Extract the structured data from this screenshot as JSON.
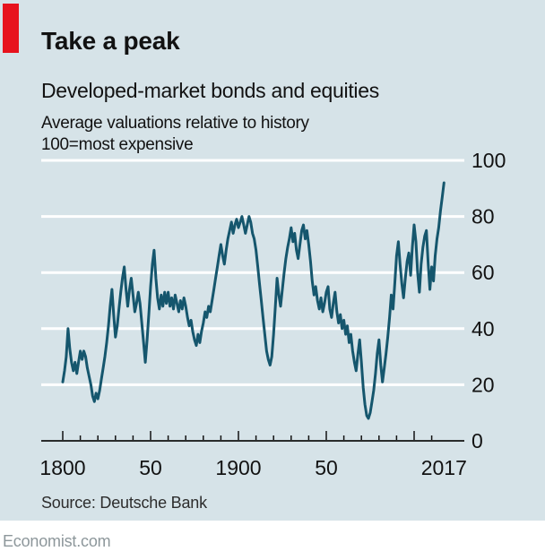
{
  "header": {
    "title": "Take a peak",
    "subtitle": "Developed-market bonds and equities",
    "note_line1": "Average valuations relative to history",
    "note_line2": "100=most expensive"
  },
  "source": "Source: Deutsche Bank",
  "footer": "Economist.com",
  "colors": {
    "background": "#d6e3e8",
    "accent_red": "#e7131d",
    "line": "#15566d",
    "grid": "#ffffff",
    "axis": "#121212",
    "text": "#121212",
    "source_text": "#2d2d2d",
    "footer_text": "#8d979b"
  },
  "chart_data": {
    "type": "line",
    "title": "Take a peak",
    "subtitle": "Developed-market bonds and equities",
    "notes": [
      "Average valuations relative to history",
      "100=most expensive"
    ],
    "xlabel": "",
    "ylabel": "",
    "ylim": [
      0,
      100
    ],
    "grid": true,
    "legend": false,
    "y_ticks": [
      0,
      20,
      40,
      60,
      80,
      100
    ],
    "x_axis": {
      "start": 1800,
      "end": 2017,
      "minor_tick_interval": 10,
      "major_tick_interval": 50
    },
    "x_labels": [
      {
        "text": "1800",
        "year": 1800
      },
      {
        "text": "50",
        "year": 1850
      },
      {
        "text": "1900",
        "year": 1900
      },
      {
        "text": "50",
        "year": 1950
      },
      {
        "text": "2017",
        "year": 2017
      }
    ],
    "series": [
      {
        "name": "Average valuation relative to history (100=most expensive)",
        "points": [
          [
            1800,
            21
          ],
          [
            1801,
            25
          ],
          [
            1802,
            30
          ],
          [
            1803,
            40
          ],
          [
            1804,
            33
          ],
          [
            1805,
            28
          ],
          [
            1806,
            25
          ],
          [
            1807,
            28
          ],
          [
            1808,
            24
          ],
          [
            1809,
            28
          ],
          [
            1810,
            32
          ],
          [
            1811,
            29
          ],
          [
            1812,
            32
          ],
          [
            1813,
            30
          ],
          [
            1814,
            26
          ],
          [
            1815,
            23
          ],
          [
            1816,
            20
          ],
          [
            1817,
            16
          ],
          [
            1818,
            14
          ],
          [
            1819,
            17
          ],
          [
            1820,
            15
          ],
          [
            1821,
            18
          ],
          [
            1822,
            22
          ],
          [
            1823,
            26
          ],
          [
            1824,
            30
          ],
          [
            1825,
            35
          ],
          [
            1826,
            41
          ],
          [
            1827,
            48
          ],
          [
            1828,
            54
          ],
          [
            1829,
            45
          ],
          [
            1830,
            37
          ],
          [
            1831,
            41
          ],
          [
            1832,
            47
          ],
          [
            1833,
            53
          ],
          [
            1834,
            58
          ],
          [
            1835,
            62
          ],
          [
            1836,
            54
          ],
          [
            1837,
            48
          ],
          [
            1838,
            54
          ],
          [
            1839,
            58
          ],
          [
            1840,
            52
          ],
          [
            1841,
            46
          ],
          [
            1842,
            49
          ],
          [
            1843,
            53
          ],
          [
            1844,
            49
          ],
          [
            1845,
            42
          ],
          [
            1846,
            35
          ],
          [
            1847,
            28
          ],
          [
            1848,
            36
          ],
          [
            1849,
            45
          ],
          [
            1850,
            55
          ],
          [
            1851,
            63
          ],
          [
            1852,
            68
          ],
          [
            1853,
            58
          ],
          [
            1854,
            51
          ],
          [
            1855,
            47
          ],
          [
            1856,
            52
          ],
          [
            1857,
            48
          ],
          [
            1858,
            53
          ],
          [
            1859,
            49
          ],
          [
            1860,
            53
          ],
          [
            1861,
            48
          ],
          [
            1862,
            51
          ],
          [
            1863,
            47
          ],
          [
            1864,
            52
          ],
          [
            1865,
            49
          ],
          [
            1866,
            46
          ],
          [
            1867,
            50
          ],
          [
            1868,
            47
          ],
          [
            1869,
            51
          ],
          [
            1870,
            48
          ],
          [
            1871,
            44
          ],
          [
            1872,
            41
          ],
          [
            1873,
            43
          ],
          [
            1874,
            39
          ],
          [
            1875,
            36
          ],
          [
            1876,
            34
          ],
          [
            1877,
            38
          ],
          [
            1878,
            35
          ],
          [
            1879,
            39
          ],
          [
            1880,
            42
          ],
          [
            1881,
            46
          ],
          [
            1882,
            44
          ],
          [
            1883,
            48
          ],
          [
            1884,
            46
          ],
          [
            1885,
            50
          ],
          [
            1886,
            54
          ],
          [
            1887,
            58
          ],
          [
            1888,
            62
          ],
          [
            1889,
            66
          ],
          [
            1890,
            70
          ],
          [
            1891,
            66
          ],
          [
            1892,
            63
          ],
          [
            1893,
            68
          ],
          [
            1894,
            72
          ],
          [
            1895,
            75
          ],
          [
            1896,
            78
          ],
          [
            1897,
            74
          ],
          [
            1898,
            77
          ],
          [
            1899,
            79
          ],
          [
            1900,
            76
          ],
          [
            1901,
            78
          ],
          [
            1902,
            80
          ],
          [
            1903,
            77
          ],
          [
            1904,
            74
          ],
          [
            1905,
            77
          ],
          [
            1906,
            80
          ],
          [
            1907,
            78
          ],
          [
            1908,
            74
          ],
          [
            1909,
            72
          ],
          [
            1910,
            68
          ],
          [
            1911,
            62
          ],
          [
            1912,
            56
          ],
          [
            1913,
            50
          ],
          [
            1914,
            44
          ],
          [
            1915,
            38
          ],
          [
            1916,
            32
          ],
          [
            1917,
            29
          ],
          [
            1918,
            27
          ],
          [
            1919,
            30
          ],
          [
            1920,
            38
          ],
          [
            1921,
            48
          ],
          [
            1922,
            58
          ],
          [
            1923,
            52
          ],
          [
            1924,
            48
          ],
          [
            1925,
            54
          ],
          [
            1926,
            60
          ],
          [
            1927,
            65
          ],
          [
            1928,
            69
          ],
          [
            1929,
            72
          ],
          [
            1930,
            76
          ],
          [
            1931,
            71
          ],
          [
            1932,
            74
          ],
          [
            1933,
            68
          ],
          [
            1934,
            65
          ],
          [
            1935,
            70
          ],
          [
            1936,
            75
          ],
          [
            1937,
            77
          ],
          [
            1938,
            72
          ],
          [
            1939,
            75
          ],
          [
            1940,
            70
          ],
          [
            1941,
            64
          ],
          [
            1942,
            57
          ],
          [
            1943,
            52
          ],
          [
            1944,
            55
          ],
          [
            1945,
            50
          ],
          [
            1946,
            47
          ],
          [
            1947,
            51
          ],
          [
            1948,
            46
          ],
          [
            1949,
            49
          ],
          [
            1950,
            53
          ],
          [
            1951,
            55
          ],
          [
            1952,
            47
          ],
          [
            1953,
            44
          ],
          [
            1954,
            49
          ],
          [
            1955,
            53
          ],
          [
            1956,
            46
          ],
          [
            1957,
            42
          ],
          [
            1958,
            45
          ],
          [
            1959,
            40
          ],
          [
            1960,
            43
          ],
          [
            1961,
            38
          ],
          [
            1962,
            41
          ],
          [
            1963,
            35
          ],
          [
            1964,
            38
          ],
          [
            1965,
            32
          ],
          [
            1966,
            28
          ],
          [
            1967,
            25
          ],
          [
            1968,
            31
          ],
          [
            1969,
            36
          ],
          [
            1970,
            28
          ],
          [
            1971,
            19
          ],
          [
            1972,
            13
          ],
          [
            1973,
            9
          ],
          [
            1974,
            8
          ],
          [
            1975,
            10
          ],
          [
            1976,
            14
          ],
          [
            1977,
            18
          ],
          [
            1978,
            24
          ],
          [
            1979,
            31
          ],
          [
            1980,
            36
          ],
          [
            1981,
            27
          ],
          [
            1982,
            21
          ],
          [
            1983,
            26
          ],
          [
            1984,
            31
          ],
          [
            1985,
            37
          ],
          [
            1986,
            44
          ],
          [
            1987,
            52
          ],
          [
            1988,
            47
          ],
          [
            1989,
            56
          ],
          [
            1990,
            66
          ],
          [
            1991,
            71
          ],
          [
            1992,
            63
          ],
          [
            1993,
            56
          ],
          [
            1994,
            51
          ],
          [
            1995,
            58
          ],
          [
            1996,
            64
          ],
          [
            1997,
            67
          ],
          [
            1998,
            59
          ],
          [
            1999,
            69
          ],
          [
            2000,
            77
          ],
          [
            2001,
            71
          ],
          [
            2002,
            60
          ],
          [
            2003,
            53
          ],
          [
            2004,
            63
          ],
          [
            2005,
            69
          ],
          [
            2006,
            73
          ],
          [
            2007,
            75
          ],
          [
            2008,
            63
          ],
          [
            2009,
            54
          ],
          [
            2010,
            62
          ],
          [
            2011,
            57
          ],
          [
            2012,
            66
          ],
          [
            2013,
            72
          ],
          [
            2014,
            76
          ],
          [
            2015,
            82
          ],
          [
            2016,
            87
          ],
          [
            2017,
            92
          ]
        ]
      }
    ]
  }
}
